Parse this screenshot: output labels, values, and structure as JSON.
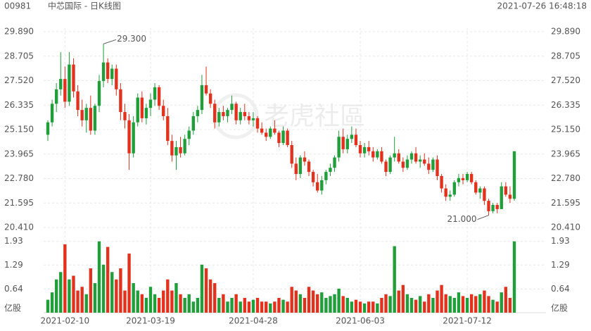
{
  "chart_data": {
    "type": "candlestick",
    "code": "00981",
    "title": "中芯国际 - 日K线图",
    "timestamp": "2021-07-26 16:48:18",
    "watermark": "老虎社區",
    "up_color": "#1f9e3a",
    "down_color": "#e2311d",
    "grid": true,
    "ylim": [
      20.41,
      29.89
    ],
    "yticks": [
      {
        "value": 29.89,
        "label": "29.890"
      },
      {
        "value": 28.705,
        "label": "28.705"
      },
      {
        "value": 27.52,
        "label": "27.520"
      },
      {
        "value": 26.335,
        "label": "26.335"
      },
      {
        "value": 25.15,
        "label": "25.150"
      },
      {
        "value": 23.965,
        "label": "23.965"
      },
      {
        "value": 22.78,
        "label": "22.780"
      },
      {
        "value": 21.595,
        "label": "21.595"
      },
      {
        "value": 20.41,
        "label": "20.410"
      }
    ],
    "volume_unit": "亿股",
    "vlim": [
      0,
      2.02
    ],
    "vticks": [
      0.64,
      1.29,
      1.93
    ],
    "annotations": [
      {
        "label": "29.300",
        "value": 29.3
      },
      {
        "label": "21.000",
        "value": 21.0
      }
    ],
    "categories": [
      null,
      null,
      null,
      null,
      "2021-02-10",
      null,
      null,
      null,
      null,
      null,
      null,
      null,
      null,
      null,
      null,
      null,
      null,
      null,
      null,
      null,
      null,
      null,
      null,
      null,
      "2021-03-19",
      null,
      null,
      null,
      null,
      null,
      null,
      null,
      null,
      null,
      null,
      null,
      null,
      null,
      null,
      null,
      null,
      null,
      null,
      null,
      null,
      null,
      null,
      null,
      "2021-04-28",
      null,
      null,
      null,
      null,
      null,
      null,
      null,
      null,
      null,
      null,
      null,
      null,
      null,
      null,
      null,
      null,
      null,
      null,
      null,
      null,
      null,
      null,
      null,
      null,
      "2021-06-03",
      null,
      null,
      null,
      null,
      null,
      null,
      null,
      null,
      null,
      null,
      null,
      null,
      null,
      null,
      null,
      null,
      null,
      null,
      null,
      null,
      null,
      null,
      null,
      null,
      "2021-07-12",
      null,
      null,
      null,
      null,
      null,
      null,
      null,
      null,
      null,
      null,
      null
    ],
    "ohlc": [
      [
        24.9,
        25.6,
        24.6,
        25.5
      ],
      [
        25.5,
        26.6,
        25.3,
        26.4
      ],
      [
        26.4,
        27.4,
        26.0,
        27.1
      ],
      [
        27.1,
        28.9,
        26.8,
        27.6
      ],
      [
        27.6,
        28.2,
        26.2,
        26.5
      ],
      [
        26.5,
        28.9,
        26.3,
        28.3
      ],
      [
        28.3,
        28.6,
        26.7,
        27.0
      ],
      [
        27.0,
        27.3,
        25.8,
        26.1
      ],
      [
        26.1,
        26.6,
        25.3,
        25.6
      ],
      [
        25.6,
        26.4,
        25.0,
        26.2
      ],
      [
        26.2,
        26.8,
        24.9,
        25.1
      ],
      [
        25.1,
        26.4,
        24.9,
        26.3
      ],
      [
        26.3,
        27.8,
        26.0,
        27.5
      ],
      [
        27.5,
        29.3,
        27.2,
        28.4
      ],
      [
        28.4,
        28.6,
        27.4,
        27.6
      ],
      [
        27.6,
        28.3,
        27.3,
        28.1
      ],
      [
        28.1,
        28.3,
        26.8,
        27.1
      ],
      [
        27.1,
        27.4,
        25.6,
        26.0
      ],
      [
        26.0,
        26.4,
        25.2,
        25.6
      ],
      [
        25.6,
        25.9,
        23.2,
        24.0
      ],
      [
        24.0,
        25.8,
        23.8,
        25.5
      ],
      [
        25.5,
        26.9,
        25.3,
        26.7
      ],
      [
        26.7,
        27.0,
        25.5,
        25.7
      ],
      [
        25.7,
        26.4,
        25.4,
        26.2
      ],
      [
        26.2,
        26.9,
        25.8,
        26.6
      ],
      [
        26.6,
        27.4,
        26.3,
        27.2
      ],
      [
        27.2,
        27.3,
        26.1,
        26.3
      ],
      [
        26.3,
        26.6,
        25.6,
        25.8
      ],
      [
        25.8,
        26.2,
        24.4,
        24.6
      ],
      [
        24.6,
        24.9,
        23.6,
        23.9
      ],
      [
        23.9,
        24.6,
        23.2,
        24.3
      ],
      [
        24.3,
        24.8,
        23.8,
        24.0
      ],
      [
        24.0,
        24.9,
        23.9,
        24.7
      ],
      [
        24.7,
        25.3,
        24.4,
        25.1
      ],
      [
        25.1,
        26.0,
        24.9,
        25.8
      ],
      [
        25.8,
        26.3,
        25.5,
        26.1
      ],
      [
        26.1,
        27.8,
        25.9,
        27.3
      ],
      [
        27.3,
        28.2,
        26.8,
        26.9
      ],
      [
        26.9,
        27.1,
        26.2,
        26.4
      ],
      [
        26.4,
        26.6,
        25.2,
        25.5
      ],
      [
        25.5,
        26.2,
        25.3,
        26.0
      ],
      [
        26.0,
        26.3,
        25.6,
        25.8
      ],
      [
        25.8,
        26.2,
        25.5,
        26.1
      ],
      [
        26.1,
        26.8,
        25.9,
        26.4
      ],
      [
        26.4,
        26.5,
        25.4,
        25.6
      ],
      [
        25.6,
        26.2,
        25.4,
        26.0
      ],
      [
        26.0,
        26.4,
        25.6,
        25.8
      ],
      [
        25.8,
        26.0,
        25.4,
        25.6
      ],
      [
        25.6,
        26.0,
        25.3,
        25.7
      ],
      [
        25.7,
        25.8,
        25.0,
        25.2
      ],
      [
        25.2,
        25.5,
        24.9,
        25.0
      ],
      [
        25.0,
        25.2,
        24.6,
        24.8
      ],
      [
        24.8,
        25.3,
        24.7,
        25.2
      ],
      [
        25.2,
        25.6,
        24.9,
        25.0
      ],
      [
        25.0,
        25.1,
        24.3,
        24.5
      ],
      [
        24.5,
        25.3,
        24.4,
        25.1
      ],
      [
        25.1,
        25.2,
        24.3,
        24.4
      ],
      [
        24.4,
        24.6,
        23.3,
        23.5
      ],
      [
        23.5,
        23.8,
        22.7,
        23.0
      ],
      [
        23.0,
        23.9,
        22.8,
        23.8
      ],
      [
        23.8,
        24.1,
        23.4,
        23.6
      ],
      [
        23.6,
        23.7,
        22.9,
        23.1
      ],
      [
        23.1,
        23.2,
        22.4,
        22.6
      ],
      [
        22.6,
        23.0,
        22.1,
        22.2
      ],
      [
        22.2,
        22.9,
        22.0,
        22.7
      ],
      [
        22.7,
        23.2,
        22.5,
        23.1
      ],
      [
        23.1,
        23.5,
        22.9,
        23.3
      ],
      [
        23.3,
        23.9,
        23.1,
        23.8
      ],
      [
        23.8,
        25.1,
        23.6,
        24.8
      ],
      [
        24.8,
        25.2,
        24.0,
        24.2
      ],
      [
        24.2,
        24.9,
        24.0,
        24.7
      ],
      [
        24.7,
        25.3,
        24.5,
        24.9
      ],
      [
        24.9,
        25.2,
        24.3,
        24.4
      ],
      [
        24.4,
        24.6,
        23.8,
        24.0
      ],
      [
        24.0,
        24.5,
        23.8,
        24.3
      ],
      [
        24.3,
        24.6,
        23.9,
        24.1
      ],
      [
        24.1,
        24.3,
        23.6,
        23.8
      ],
      [
        23.8,
        24.2,
        23.7,
        24.1
      ],
      [
        24.1,
        24.3,
        23.5,
        23.6
      ],
      [
        23.6,
        23.7,
        22.9,
        23.1
      ],
      [
        23.1,
        23.9,
        23.0,
        23.8
      ],
      [
        23.8,
        24.8,
        23.6,
        24.0
      ],
      [
        24.0,
        24.2,
        23.5,
        23.6
      ],
      [
        23.6,
        23.8,
        23.1,
        23.3
      ],
      [
        23.3,
        23.9,
        23.2,
        23.7
      ],
      [
        23.7,
        24.1,
        23.5,
        24.0
      ],
      [
        24.0,
        24.3,
        23.5,
        23.6
      ],
      [
        23.6,
        23.9,
        23.3,
        23.7
      ],
      [
        23.7,
        24.0,
        23.4,
        23.5
      ],
      [
        23.5,
        23.8,
        23.0,
        23.2
      ],
      [
        23.2,
        23.8,
        23.1,
        23.7
      ],
      [
        23.7,
        23.9,
        22.7,
        22.9
      ],
      [
        22.9,
        23.0,
        22.1,
        22.3
      ],
      [
        22.3,
        22.5,
        21.7,
        21.9
      ],
      [
        21.9,
        22.2,
        21.7,
        22.0
      ],
      [
        22.0,
        22.7,
        21.9,
        22.6
      ],
      [
        22.6,
        23.0,
        22.4,
        22.8
      ],
      [
        22.8,
        23.0,
        22.5,
        22.7
      ],
      [
        22.7,
        23.1,
        22.6,
        23.0
      ],
      [
        23.0,
        23.1,
        22.5,
        22.6
      ],
      [
        22.6,
        22.7,
        22.0,
        22.1
      ],
      [
        22.1,
        22.4,
        21.8,
        22.3
      ],
      [
        22.3,
        22.4,
        21.5,
        21.7
      ],
      [
        21.7,
        21.8,
        21.0,
        21.2
      ],
      [
        21.2,
        21.6,
        21.1,
        21.5
      ],
      [
        21.5,
        21.6,
        21.1,
        21.3
      ],
      [
        21.3,
        22.6,
        21.3,
        22.4
      ],
      [
        22.4,
        22.6,
        21.9,
        22.0
      ],
      [
        22.0,
        22.4,
        21.6,
        21.8
      ],
      [
        21.8,
        24.1,
        21.7,
        24.1
      ]
    ],
    "volume": [
      0.35,
      0.55,
      0.9,
      1.1,
      1.85,
      0.9,
      1.0,
      0.6,
      0.7,
      0.5,
      1.2,
      0.8,
      1.93,
      1.3,
      1.78,
      1.1,
      0.9,
      1.2,
      0.6,
      1.6,
      0.8,
      0.6,
      0.5,
      0.4,
      0.7,
      0.5,
      0.4,
      0.6,
      0.9,
      0.6,
      0.8,
      0.5,
      0.4,
      0.5,
      0.3,
      0.4,
      1.3,
      1.2,
      0.9,
      0.8,
      0.4,
      0.5,
      0.3,
      0.4,
      0.5,
      0.3,
      0.4,
      0.3,
      0.35,
      0.4,
      0.3,
      0.3,
      0.25,
      0.3,
      0.4,
      0.35,
      0.3,
      0.7,
      0.6,
      0.5,
      0.4,
      0.7,
      0.6,
      0.5,
      0.55,
      0.4,
      0.45,
      0.5,
      0.65,
      0.45,
      0.4,
      0.3,
      0.35,
      0.3,
      0.25,
      0.3,
      0.3,
      0.25,
      0.4,
      0.5,
      0.45,
      1.8,
      0.6,
      0.75,
      0.5,
      0.4,
      0.35,
      0.45,
      0.3,
      0.5,
      0.4,
      0.6,
      0.75,
      0.5,
      0.45,
      0.4,
      0.55,
      0.45,
      0.4,
      0.5,
      0.45,
      0.5,
      0.6,
      0.45,
      0.35,
      0.3,
      0.55,
      0.7,
      0.4,
      1.93
    ]
  }
}
